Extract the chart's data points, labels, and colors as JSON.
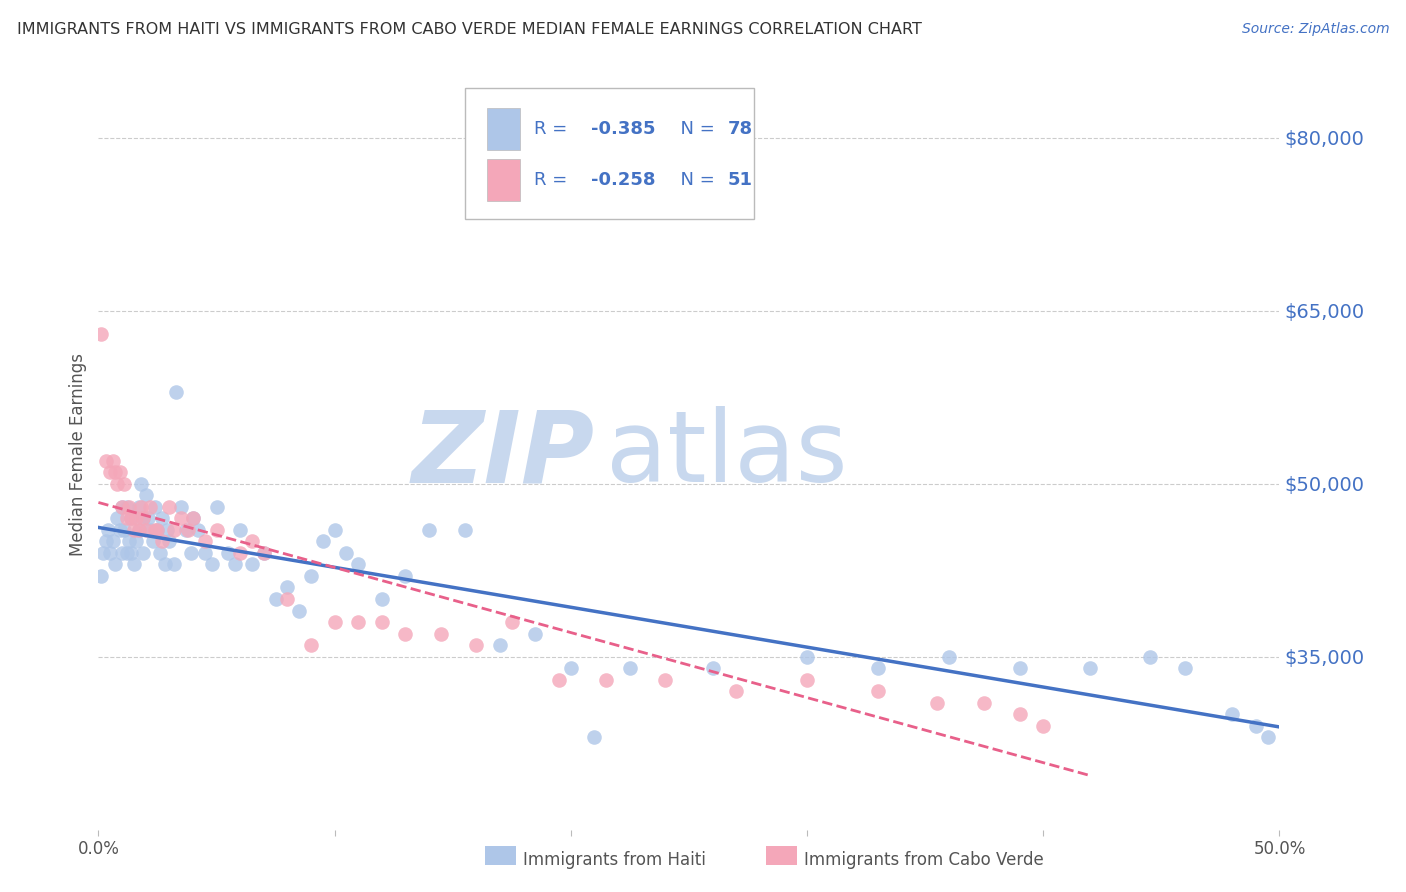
{
  "title": "IMMIGRANTS FROM HAITI VS IMMIGRANTS FROM CABO VERDE MEDIAN FEMALE EARNINGS CORRELATION CHART",
  "source": "Source: ZipAtlas.com",
  "ylabel": "Median Female Earnings",
  "right_yticks": [
    80000,
    65000,
    50000,
    35000
  ],
  "right_yticklabels": [
    "$80,000",
    "$65,000",
    "$50,000",
    "$35,000"
  ],
  "haiti_R": -0.385,
  "haiti_N": 78,
  "caboverde_R": -0.258,
  "caboverde_N": 51,
  "haiti_color": "#aec6e8",
  "caboverde_color": "#f4a7b9",
  "haiti_line_color": "#4472c4",
  "caboverde_line_color": "#e8608a",
  "watermark_zip": "ZIP",
  "watermark_atlas": "atlas",
  "watermark_color_zip": "#c8d8ee",
  "watermark_color_atlas": "#c8d8ee",
  "background_color": "#ffffff",
  "grid_color": "#cccccc",
  "title_color": "#333333",
  "source_color": "#4472c4",
  "right_axis_color": "#4472c4",
  "legend_text_color": "#4472c4",
  "xmin": 0.0,
  "xmax": 0.5,
  "ymin": 20000,
  "ymax": 85000,
  "haiti_x": [
    0.001,
    0.002,
    0.003,
    0.004,
    0.005,
    0.006,
    0.007,
    0.008,
    0.009,
    0.01,
    0.01,
    0.011,
    0.012,
    0.012,
    0.013,
    0.014,
    0.014,
    0.015,
    0.016,
    0.017,
    0.017,
    0.018,
    0.019,
    0.019,
    0.02,
    0.021,
    0.022,
    0.023,
    0.024,
    0.025,
    0.026,
    0.027,
    0.028,
    0.029,
    0.03,
    0.032,
    0.033,
    0.035,
    0.037,
    0.039,
    0.04,
    0.042,
    0.045,
    0.048,
    0.05,
    0.055,
    0.058,
    0.06,
    0.065,
    0.07,
    0.075,
    0.08,
    0.085,
    0.09,
    0.095,
    0.1,
    0.105,
    0.11,
    0.12,
    0.13,
    0.14,
    0.155,
    0.17,
    0.185,
    0.2,
    0.21,
    0.225,
    0.26,
    0.3,
    0.33,
    0.36,
    0.39,
    0.42,
    0.445,
    0.46,
    0.48,
    0.49,
    0.495
  ],
  "haiti_y": [
    42000,
    44000,
    45000,
    46000,
    44000,
    45000,
    43000,
    47000,
    46000,
    48000,
    44000,
    46000,
    44000,
    48000,
    45000,
    44000,
    47000,
    43000,
    45000,
    46000,
    48000,
    50000,
    47000,
    44000,
    49000,
    47000,
    46000,
    45000,
    48000,
    46000,
    44000,
    47000,
    43000,
    46000,
    45000,
    43000,
    58000,
    48000,
    46000,
    44000,
    47000,
    46000,
    44000,
    43000,
    48000,
    44000,
    43000,
    46000,
    43000,
    44000,
    40000,
    41000,
    39000,
    42000,
    45000,
    46000,
    44000,
    43000,
    40000,
    42000,
    46000,
    46000,
    36000,
    37000,
    34000,
    28000,
    34000,
    34000,
    35000,
    34000,
    35000,
    34000,
    34000,
    35000,
    34000,
    30000,
    29000,
    28000
  ],
  "caboverde_x": [
    0.001,
    0.003,
    0.005,
    0.006,
    0.007,
    0.008,
    0.009,
    0.01,
    0.011,
    0.012,
    0.013,
    0.014,
    0.015,
    0.016,
    0.017,
    0.018,
    0.019,
    0.02,
    0.022,
    0.024,
    0.025,
    0.027,
    0.03,
    0.032,
    0.035,
    0.038,
    0.04,
    0.045,
    0.05,
    0.06,
    0.065,
    0.07,
    0.08,
    0.09,
    0.1,
    0.11,
    0.12,
    0.13,
    0.145,
    0.16,
    0.175,
    0.195,
    0.215,
    0.24,
    0.27,
    0.3,
    0.33,
    0.355,
    0.375,
    0.39,
    0.4
  ],
  "caboverde_y": [
    63000,
    52000,
    51000,
    52000,
    51000,
    50000,
    51000,
    48000,
    50000,
    47000,
    48000,
    47000,
    46000,
    47000,
    46000,
    48000,
    47000,
    46000,
    48000,
    46000,
    46000,
    45000,
    48000,
    46000,
    47000,
    46000,
    47000,
    45000,
    46000,
    44000,
    45000,
    44000,
    40000,
    36000,
    38000,
    38000,
    38000,
    37000,
    37000,
    36000,
    38000,
    33000,
    33000,
    33000,
    32000,
    33000,
    32000,
    31000,
    31000,
    30000,
    29000
  ]
}
